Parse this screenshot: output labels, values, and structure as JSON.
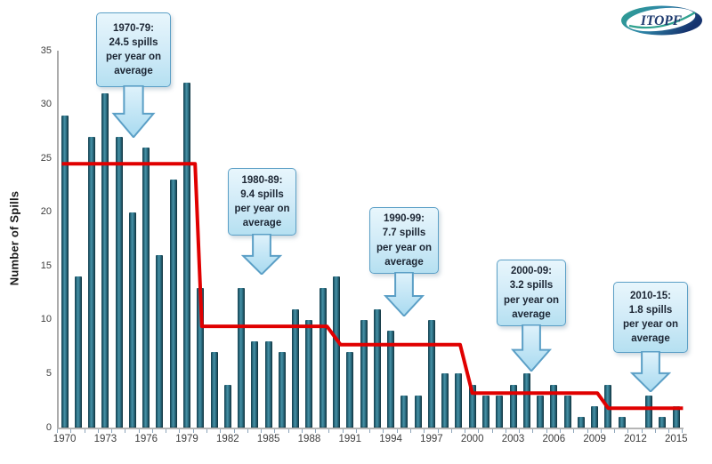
{
  "logo": {
    "text": "ITOPF"
  },
  "chart_data": {
    "type": "bar",
    "title": "",
    "xlabel": "",
    "ylabel": "Number of Spills",
    "ylim": [
      0,
      35
    ],
    "grid": false,
    "legend": "none",
    "bar_color": "#2b6b7e",
    "line_color": "#e00000",
    "years": [
      1970,
      1971,
      1972,
      1973,
      1974,
      1975,
      1976,
      1977,
      1978,
      1979,
      1980,
      1981,
      1982,
      1983,
      1984,
      1985,
      1986,
      1987,
      1988,
      1989,
      1990,
      1991,
      1992,
      1993,
      1994,
      1995,
      1996,
      1997,
      1998,
      1999,
      2000,
      2001,
      2002,
      2003,
      2004,
      2005,
      2006,
      2007,
      2008,
      2009,
      2010,
      2011,
      2012,
      2013,
      2014,
      2015
    ],
    "values": [
      29,
      14,
      27,
      31,
      27,
      20,
      26,
      16,
      23,
      32,
      13,
      7,
      4,
      13,
      8,
      8,
      7,
      11,
      10,
      13,
      14,
      7,
      10,
      11,
      9,
      3,
      3,
      10,
      5,
      5,
      4,
      3,
      3,
      4,
      5,
      3,
      4,
      3,
      1,
      2,
      4,
      1,
      0,
      3,
      1,
      2
    ],
    "yticks": [
      0,
      5,
      10,
      15,
      20,
      25,
      30,
      35
    ],
    "xtick_labels": [
      1970,
      1973,
      1976,
      1979,
      1982,
      1985,
      1988,
      1991,
      1994,
      1997,
      2000,
      2003,
      2006,
      2009,
      2012,
      2015
    ],
    "average_line": {
      "description": "average spills per year per period (red step line)",
      "segments": [
        {
          "start": 1969.8,
          "end": 1979.6,
          "value": 24.5
        },
        {
          "start": 1980.1,
          "end": 1989.3,
          "value": 9.4
        },
        {
          "start": 1990.3,
          "end": 1999.1,
          "value": 7.7
        },
        {
          "start": 2000.0,
          "end": 2009.2,
          "value": 3.2
        },
        {
          "start": 2010.0,
          "end": 2015.5,
          "value": 1.8
        }
      ]
    }
  },
  "callouts": [
    {
      "period": "1970-79",
      "average": 24.5,
      "text": "1970-79:\n24.5  spills\nper year on\naverage"
    },
    {
      "period": "1980-89",
      "average": 9.4,
      "text": "1980-89:\n9.4 spills\nper year on\naverage"
    },
    {
      "period": "1990-99",
      "average": 7.7,
      "text": "1990-99:\n7.7 spills\nper year on\naverage"
    },
    {
      "period": "2000-09",
      "average": 3.2,
      "text": "2000-09:\n3.2 spills\nper year on\naverage"
    },
    {
      "period": "2010-15",
      "average": 1.8,
      "text": "2010-15:\n1.8 spills\nper year on\naverage"
    }
  ]
}
